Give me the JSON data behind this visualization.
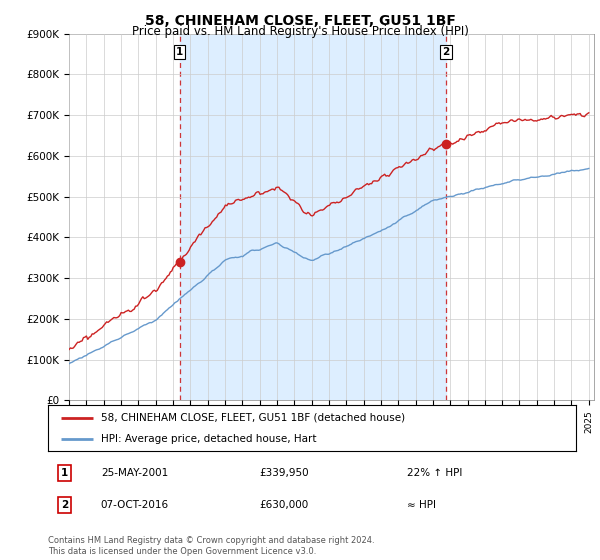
{
  "title": "58, CHINEHAM CLOSE, FLEET, GU51 1BF",
  "subtitle": "Price paid vs. HM Land Registry's House Price Index (HPI)",
  "legend_line1": "58, CHINEHAM CLOSE, FLEET, GU51 1BF (detached house)",
  "legend_line2": "HPI: Average price, detached house, Hart",
  "transaction1_label": "1",
  "transaction1_date": "25-MAY-2001",
  "transaction1_price": "£339,950",
  "transaction1_hpi": "22% ↑ HPI",
  "transaction2_label": "2",
  "transaction2_date": "07-OCT-2016",
  "transaction2_price": "£630,000",
  "transaction2_hpi": "≈ HPI",
  "footer": "Contains HM Land Registry data © Crown copyright and database right 2024.\nThis data is licensed under the Open Government Licence v3.0.",
  "hpi_color": "#6699cc",
  "price_color": "#cc2222",
  "transaction_color": "#cc2222",
  "dashed_color": "#cc2222",
  "shade_color": "#ddeeff",
  "ylim_min": 0,
  "ylim_max": 900000,
  "yticks": [
    0,
    100000,
    200000,
    300000,
    400000,
    500000,
    600000,
    700000,
    800000,
    900000
  ],
  "ytick_labels": [
    "£0",
    "£100K",
    "£200K",
    "£300K",
    "£400K",
    "£500K",
    "£600K",
    "£700K",
    "£800K",
    "£900K"
  ],
  "start_year": 1995,
  "end_year": 2025,
  "transaction1_year": 2001.38,
  "transaction1_value": 339950,
  "transaction2_year": 2016.77,
  "transaction2_value": 630000,
  "bg_color": "#ffffff",
  "grid_color": "#cccccc"
}
